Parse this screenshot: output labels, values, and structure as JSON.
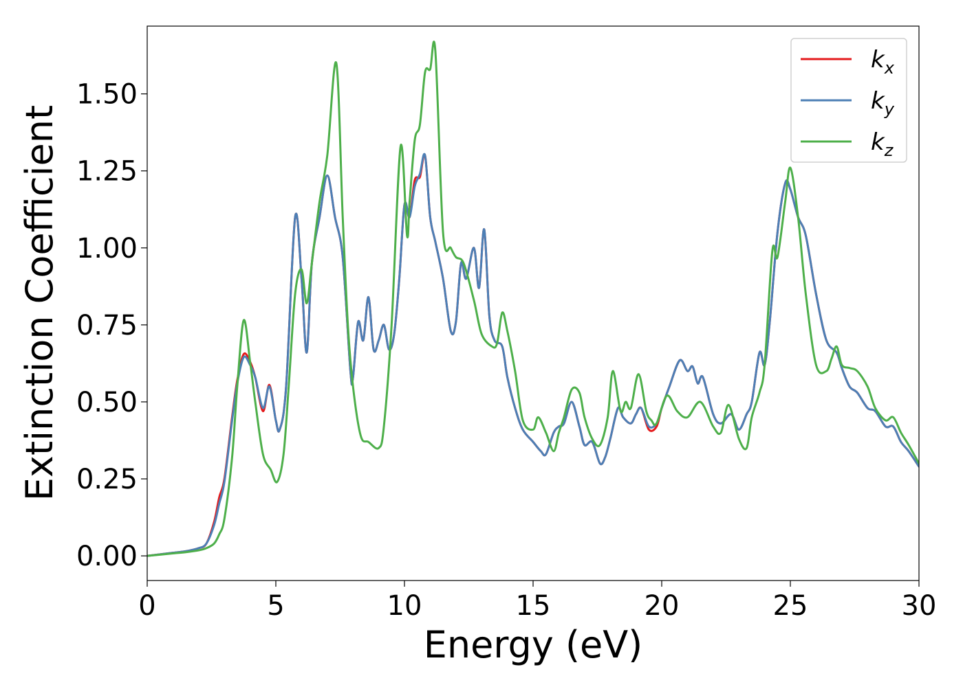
{
  "chart_data": {
    "type": "line",
    "title": "",
    "xlabel": "Energy (eV)",
    "ylabel": "Extinction Coefficient",
    "xlim": [
      0,
      30
    ],
    "ylim": [
      -0.08,
      1.72
    ],
    "xticks": [
      0,
      5,
      10,
      15,
      20,
      25,
      30
    ],
    "xtick_labels": [
      "0",
      "5",
      "10",
      "15",
      "20",
      "25",
      "30"
    ],
    "yticks": [
      0.0,
      0.25,
      0.5,
      0.75,
      1.0,
      1.25,
      1.5
    ],
    "ytick_labels": [
      "0.00",
      "0.25",
      "0.50",
      "0.75",
      "1.00",
      "1.25",
      "1.50"
    ],
    "grid": false,
    "legend_position": "top-right",
    "series": [
      {
        "name": "k_x",
        "base": "k",
        "subscript": "x",
        "color": "#e41a1c",
        "x": [
          0,
          1,
          1.5,
          2,
          2.3,
          2.6,
          2.8,
          3.0,
          3.3,
          3.5,
          3.75,
          4.0,
          4.2,
          4.5,
          4.75,
          5.0,
          5.15,
          5.4,
          5.75,
          6.0,
          6.2,
          6.4,
          6.7,
          7.0,
          7.3,
          7.6,
          7.9,
          8.0,
          8.2,
          8.4,
          8.6,
          8.8,
          9.0,
          9.2,
          9.4,
          9.6,
          9.8,
          10.0,
          10.2,
          10.4,
          10.6,
          10.8,
          11.0,
          11.2,
          11.5,
          11.8,
          12.0,
          12.2,
          12.4,
          12.7,
          12.9,
          13.1,
          13.3,
          13.5,
          13.8,
          14.0,
          14.3,
          14.6,
          15.0,
          15.3,
          15.5,
          15.8,
          16.0,
          16.2,
          16.5,
          16.8,
          17.0,
          17.3,
          17.6,
          17.8,
          18.0,
          18.3,
          18.5,
          18.8,
          19.0,
          19.2,
          19.5,
          19.8,
          20.0,
          20.3,
          20.7,
          21.0,
          21.2,
          21.4,
          21.6,
          22.0,
          22.3,
          22.7,
          23.0,
          23.3,
          23.5,
          23.8,
          24.0,
          24.2,
          24.5,
          24.8,
          25.0,
          25.3,
          25.6,
          26.0,
          26.4,
          26.8,
          27.0,
          27.3,
          27.6,
          28.0,
          28.3,
          28.7,
          29.0,
          29.3,
          29.6,
          30.0
        ],
        "y": [
          0.0,
          0.01,
          0.015,
          0.025,
          0.04,
          0.11,
          0.19,
          0.25,
          0.45,
          0.57,
          0.655,
          0.63,
          0.58,
          0.47,
          0.555,
          0.44,
          0.41,
          0.55,
          1.1,
          0.9,
          0.66,
          0.95,
          1.1,
          1.235,
          1.1,
          0.97,
          0.6,
          0.58,
          0.76,
          0.7,
          0.84,
          0.67,
          0.7,
          0.75,
          0.67,
          0.72,
          0.9,
          1.14,
          1.1,
          1.22,
          1.23,
          1.3,
          1.1,
          1.02,
          0.9,
          0.73,
          0.76,
          0.95,
          0.9,
          1.0,
          0.87,
          1.06,
          0.78,
          0.7,
          0.68,
          0.58,
          0.48,
          0.41,
          0.37,
          0.34,
          0.33,
          0.4,
          0.42,
          0.43,
          0.5,
          0.42,
          0.36,
          0.37,
          0.3,
          0.32,
          0.38,
          0.48,
          0.45,
          0.43,
          0.46,
          0.48,
          0.41,
          0.42,
          0.48,
          0.55,
          0.635,
          0.6,
          0.615,
          0.56,
          0.58,
          0.46,
          0.43,
          0.46,
          0.41,
          0.46,
          0.5,
          0.66,
          0.62,
          0.76,
          1.05,
          1.21,
          1.19,
          1.1,
          1.04,
          0.85,
          0.7,
          0.66,
          0.61,
          0.55,
          0.53,
          0.48,
          0.47,
          0.42,
          0.42,
          0.37,
          0.34,
          0.29
        ]
      },
      {
        "name": "k_y",
        "base": "k",
        "subscript": "y",
        "color": "#4c7fb5",
        "x": [
          0,
          1,
          1.5,
          2,
          2.3,
          2.6,
          2.8,
          3.0,
          3.3,
          3.5,
          3.75,
          4.0,
          4.2,
          4.5,
          4.75,
          5.0,
          5.15,
          5.4,
          5.75,
          6.0,
          6.2,
          6.4,
          6.7,
          7.0,
          7.3,
          7.6,
          7.9,
          8.0,
          8.2,
          8.4,
          8.6,
          8.8,
          9.0,
          9.2,
          9.4,
          9.6,
          9.8,
          10.0,
          10.2,
          10.4,
          10.6,
          10.8,
          11.0,
          11.2,
          11.5,
          11.8,
          12.0,
          12.2,
          12.4,
          12.7,
          12.9,
          13.1,
          13.3,
          13.5,
          13.8,
          14.0,
          14.3,
          14.6,
          15.0,
          15.3,
          15.5,
          15.8,
          16.0,
          16.2,
          16.5,
          16.8,
          17.0,
          17.3,
          17.6,
          17.8,
          18.0,
          18.3,
          18.5,
          18.8,
          19.0,
          19.2,
          19.5,
          19.8,
          20.0,
          20.3,
          20.7,
          21.0,
          21.2,
          21.4,
          21.6,
          22.0,
          22.3,
          22.7,
          23.0,
          23.3,
          23.5,
          23.8,
          24.0,
          24.2,
          24.5,
          24.8,
          25.0,
          25.3,
          25.6,
          26.0,
          26.4,
          26.8,
          27.0,
          27.3,
          27.6,
          28.0,
          28.3,
          28.7,
          29.0,
          29.3,
          29.6,
          30.0
        ],
        "y": [
          0.0,
          0.01,
          0.015,
          0.025,
          0.04,
          0.1,
          0.17,
          0.24,
          0.44,
          0.56,
          0.645,
          0.62,
          0.58,
          0.48,
          0.55,
          0.44,
          0.41,
          0.55,
          1.1,
          0.9,
          0.66,
          0.95,
          1.1,
          1.235,
          1.1,
          0.97,
          0.6,
          0.58,
          0.76,
          0.7,
          0.84,
          0.67,
          0.7,
          0.75,
          0.67,
          0.72,
          0.9,
          1.14,
          1.1,
          1.2,
          1.24,
          1.3,
          1.1,
          1.02,
          0.9,
          0.73,
          0.76,
          0.95,
          0.9,
          1.0,
          0.87,
          1.06,
          0.78,
          0.7,
          0.68,
          0.58,
          0.48,
          0.41,
          0.37,
          0.34,
          0.33,
          0.4,
          0.42,
          0.43,
          0.5,
          0.42,
          0.36,
          0.37,
          0.3,
          0.32,
          0.38,
          0.48,
          0.45,
          0.43,
          0.46,
          0.48,
          0.42,
          0.43,
          0.48,
          0.55,
          0.635,
          0.6,
          0.615,
          0.56,
          0.58,
          0.46,
          0.43,
          0.46,
          0.41,
          0.46,
          0.5,
          0.66,
          0.62,
          0.76,
          1.05,
          1.21,
          1.19,
          1.1,
          1.04,
          0.85,
          0.7,
          0.66,
          0.61,
          0.55,
          0.53,
          0.48,
          0.47,
          0.42,
          0.42,
          0.37,
          0.34,
          0.29
        ]
      },
      {
        "name": "k_z",
        "base": "k",
        "subscript": "z",
        "color": "#4daf4a",
        "x": [
          0,
          1,
          1.5,
          2,
          2.3,
          2.6,
          2.8,
          3.0,
          3.3,
          3.5,
          3.75,
          4.0,
          4.2,
          4.5,
          4.8,
          5.05,
          5.3,
          5.5,
          5.75,
          6.0,
          6.2,
          6.4,
          6.7,
          7.0,
          7.35,
          7.6,
          7.8,
          8.0,
          8.3,
          8.6,
          9.0,
          9.2,
          9.5,
          9.85,
          10.1,
          10.2,
          10.4,
          10.6,
          10.8,
          11.0,
          11.2,
          11.5,
          11.8,
          12.0,
          12.3,
          12.7,
          13.0,
          13.4,
          13.6,
          13.8,
          14.0,
          14.3,
          14.6,
          15.0,
          15.2,
          15.5,
          15.8,
          16.0,
          16.2,
          16.5,
          16.8,
          17.0,
          17.3,
          17.6,
          17.9,
          18.1,
          18.4,
          18.6,
          18.8,
          19.1,
          19.4,
          19.6,
          19.8,
          20.2,
          20.6,
          21.0,
          21.5,
          22.0,
          22.3,
          22.6,
          23.0,
          23.3,
          23.5,
          23.8,
          24.0,
          24.3,
          24.5,
          24.8,
          25.0,
          25.3,
          25.6,
          26.0,
          26.4,
          26.6,
          26.8,
          27.0,
          27.3,
          27.6,
          28.0,
          28.3,
          28.7,
          29.0,
          29.3,
          29.6,
          30.0
        ],
        "y": [
          0.0,
          0.008,
          0.012,
          0.018,
          0.025,
          0.04,
          0.07,
          0.12,
          0.32,
          0.55,
          0.765,
          0.63,
          0.5,
          0.33,
          0.28,
          0.24,
          0.33,
          0.55,
          0.85,
          0.93,
          0.82,
          0.95,
          1.15,
          1.3,
          1.6,
          1.1,
          0.75,
          0.55,
          0.39,
          0.37,
          0.35,
          0.42,
          0.75,
          1.33,
          1.04,
          1.15,
          1.35,
          1.4,
          1.57,
          1.58,
          1.64,
          1.05,
          1.0,
          0.97,
          0.95,
          0.83,
          0.72,
          0.68,
          0.69,
          0.79,
          0.73,
          0.6,
          0.44,
          0.41,
          0.45,
          0.4,
          0.34,
          0.4,
          0.45,
          0.54,
          0.53,
          0.45,
          0.38,
          0.36,
          0.45,
          0.6,
          0.47,
          0.5,
          0.48,
          0.59,
          0.47,
          0.44,
          0.43,
          0.52,
          0.47,
          0.45,
          0.5,
          0.42,
          0.4,
          0.49,
          0.38,
          0.35,
          0.45,
          0.53,
          0.62,
          0.99,
          0.97,
          1.15,
          1.26,
          1.1,
          0.85,
          0.62,
          0.6,
          0.64,
          0.68,
          0.62,
          0.61,
          0.6,
          0.55,
          0.48,
          0.44,
          0.45,
          0.4,
          0.36,
          0.3
        ]
      }
    ]
  }
}
